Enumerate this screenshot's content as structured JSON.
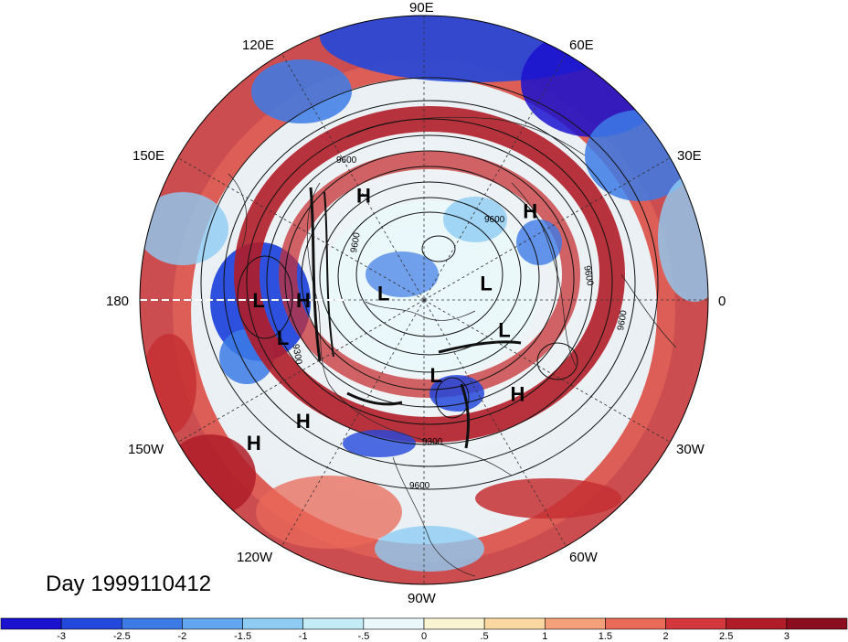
{
  "map": {
    "longitude_labels": [
      "90E",
      "60E",
      "30E",
      "0",
      "30W",
      "60W",
      "90W",
      "120W",
      "150W",
      "180",
      "150E",
      "120E"
    ],
    "day_label": "Day 1999110412",
    "contour_labels": [
      "9600",
      "9600",
      "9600",
      "9600",
      "9300",
      "9300",
      "9600",
      "9600"
    ],
    "pressure_centers": [
      {
        "type": "H",
        "lon": 120,
        "lat": 44
      },
      {
        "type": "H",
        "lon": 40,
        "lat": 38
      },
      {
        "type": "L",
        "lon": 15,
        "lat": 64
      },
      {
        "type": "L",
        "lon": 170,
        "lat": 74
      },
      {
        "type": "L",
        "lon": 180,
        "lat": 30
      },
      {
        "type": "H",
        "lon": 180,
        "lat": 44
      },
      {
        "type": "L",
        "lon": -165,
        "lat": 36
      },
      {
        "type": "L",
        "lon": -20,
        "lat": 56
      },
      {
        "type": "L",
        "lon": -80,
        "lat": 60
      },
      {
        "type": "H",
        "lon": -45,
        "lat": 40
      },
      {
        "type": "H",
        "lon": -135,
        "lat": 28
      },
      {
        "type": "H",
        "lon": -140,
        "lat": 14
      }
    ],
    "colors": {
      "deep_red": "#a50f15",
      "deep_blue": "#1a1ad0"
    }
  },
  "colorbar": {
    "tick_labels": [
      "-3",
      "-2.5",
      "-2",
      "-1.5",
      "-1",
      "-.5",
      "0",
      ".5",
      "1",
      "1.5",
      "2",
      "2.5",
      "3"
    ],
    "colors": [
      "#1b12cf",
      "#2348dc",
      "#3c7be6",
      "#61a6ee",
      "#8fccf4",
      "#c4ebf8",
      "#eaf8fb",
      "#fbf4d2",
      "#fbd8a0",
      "#f4a17a",
      "#ea6a5a",
      "#d5383c",
      "#b01d28",
      "#8c0d1d"
    ]
  }
}
